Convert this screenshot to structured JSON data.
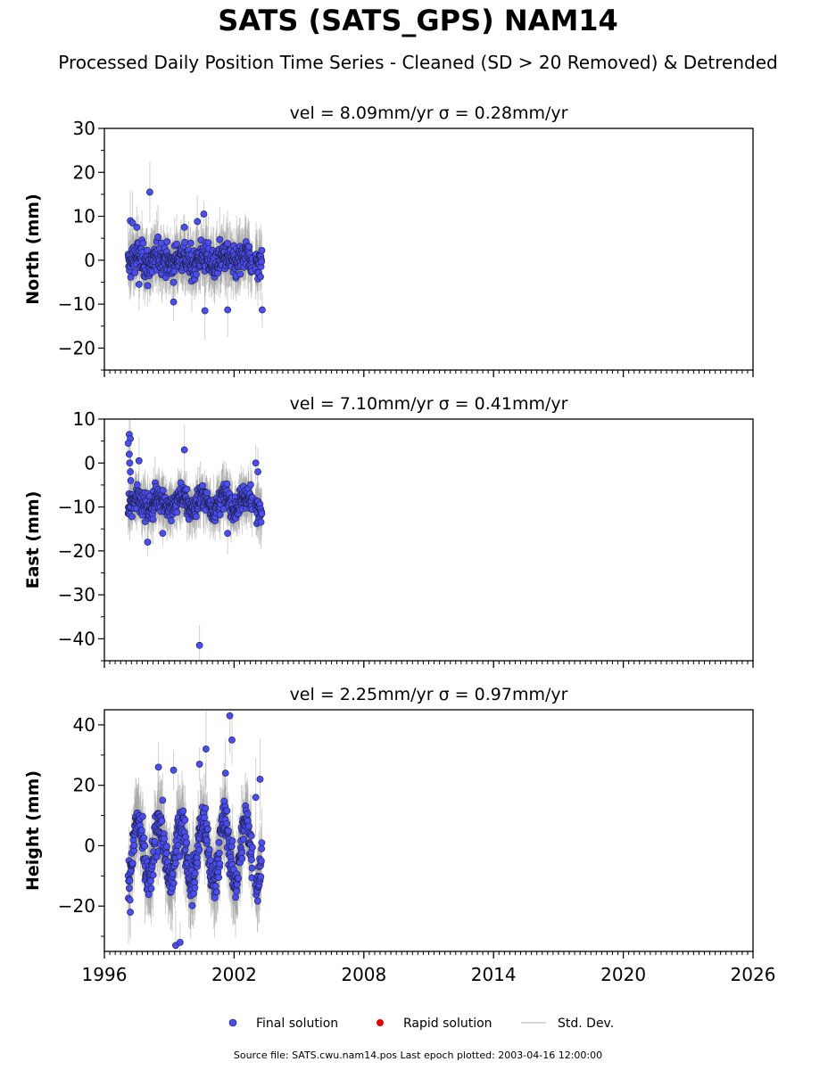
{
  "title": "SATS (SATS_GPS) NAM14",
  "subtitle": "Processed Daily Position Time Series - Cleaned (SD > 20 Removed) & Detrended",
  "source": "Source file: SATS.cwu.nam14.pos  Last epoch plotted: 2003-04-16 12:00:00",
  "colors": {
    "final": "#4a4ef0",
    "rapid": "#e00000",
    "stddev": "#c8c8c8"
  },
  "legend": {
    "final": "Final solution",
    "rapid": "Rapid solution",
    "stddev": "Std. Dev."
  },
  "chart_data": {
    "type": "scatter",
    "x_range": [
      1996,
      2026
    ],
    "x_ticks": [
      1996,
      2002,
      2008,
      2014,
      2020,
      2026
    ],
    "data_span": [
      1997.1,
      2003.29
    ],
    "panels": [
      {
        "id": "north",
        "title": "vel = 8.09mm/yr   σ = 0.28mm/yr",
        "ylabel": "North (mm)",
        "ylim": [
          -25,
          30
        ],
        "yticks": [
          -20,
          -10,
          0,
          10,
          20,
          30
        ],
        "tick_labels": [
          "−20",
          "−10",
          "0",
          "10",
          "20",
          "30"
        ],
        "outliers": [
          [
            1998.1,
            15.5
          ],
          [
            2000.6,
            10.5
          ],
          [
            2000.65,
            -11.5
          ],
          [
            2001.7,
            -11.3
          ],
          [
            2003.3,
            -11.3
          ],
          [
            1999.2,
            -9.5
          ],
          [
            2000.3,
            8.8
          ],
          [
            1999.7,
            7.5
          ]
        ],
        "series": {
          "mean": 0,
          "spread": 3,
          "annual_amp": 1,
          "anchors": [
            [
              1997.2,
              9
            ],
            [
              1997.3,
              8.5
            ],
            [
              1997.5,
              7.5
            ],
            [
              1997.6,
              -5.5
            ],
            [
              1998.0,
              -5.8
            ]
          ]
        }
      },
      {
        "id": "east",
        "title": "vel = 7.10mm/yr   σ = 0.41mm/yr",
        "ylabel": "East (mm)",
        "ylim": [
          -45,
          10
        ],
        "yticks": [
          -40,
          -30,
          -20,
          -10,
          0,
          10
        ],
        "tick_labels": [
          "−40",
          "−30",
          "−20",
          "−10",
          "0",
          "10"
        ],
        "outliers": [
          [
            2000.4,
            -41.5
          ],
          [
            1999.7,
            3
          ],
          [
            1997.15,
            6.5
          ],
          [
            1997.2,
            5.5
          ],
          [
            1997.1,
            4.5
          ],
          [
            1998.0,
            -18
          ],
          [
            1998.7,
            -16
          ],
          [
            2001.7,
            -16
          ],
          [
            1997.6,
            0.5
          ]
        ],
        "series": {
          "mean": -9,
          "spread": 2.5,
          "annual_amp": 1.5,
          "anchors": [
            [
              1997.15,
              2
            ],
            [
              1997.17,
              0
            ],
            [
              1997.2,
              -2
            ],
            [
              1997.22,
              -4
            ],
            [
              2003.0,
              0
            ],
            [
              2003.1,
              -2
            ]
          ]
        }
      },
      {
        "id": "height",
        "title": "vel = 2.25mm/yr   σ = 0.97mm/yr",
        "ylabel": "Height (mm)",
        "ylim": [
          -35,
          45
        ],
        "yticks": [
          -20,
          0,
          20,
          40
        ],
        "tick_labels": [
          "−20",
          "0",
          "20",
          "40"
        ],
        "outliers": [
          [
            2001.8,
            43
          ],
          [
            2001.9,
            35
          ],
          [
            2000.7,
            32
          ],
          [
            2003.2,
            22
          ],
          [
            2003.0,
            16
          ],
          [
            1999.3,
            -33
          ],
          [
            1999.5,
            -32
          ],
          [
            1997.2,
            -22
          ]
        ],
        "series": {
          "mean": -2,
          "spread": 6,
          "annual_amp": 10,
          "anchors": [
            [
              1998.5,
              26
            ],
            [
              1999.2,
              25
            ],
            [
              2000.4,
              27
            ],
            [
              2001.6,
              24
            ]
          ]
        }
      }
    ]
  }
}
